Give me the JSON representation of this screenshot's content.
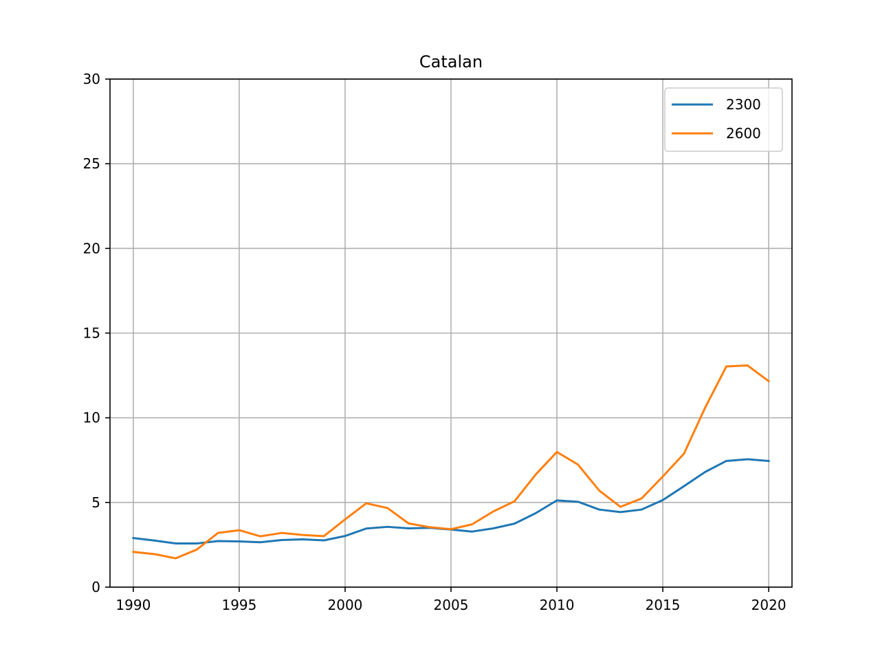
{
  "chart_data": {
    "type": "line",
    "title": "Catalan",
    "xlabel": "",
    "ylabel": "",
    "xlim": [
      1988.9,
      2021.1
    ],
    "ylim": [
      0,
      30
    ],
    "xticks": [
      1990,
      1995,
      2000,
      2005,
      2010,
      2015,
      2020
    ],
    "yticks": [
      0,
      5,
      10,
      15,
      20,
      25,
      30
    ],
    "grid": true,
    "legend_position": "top-right",
    "x": [
      1990,
      1991,
      1992,
      1993,
      1994,
      1995,
      1996,
      1997,
      1998,
      1999,
      2000,
      2001,
      2002,
      2003,
      2004,
      2005,
      2006,
      2007,
      2008,
      2009,
      2010,
      2011,
      2012,
      2013,
      2014,
      2015,
      2016,
      2017,
      2018,
      2019,
      2020
    ],
    "series": [
      {
        "name": "2300",
        "color": "#1f77b4",
        "values": [
          2.9,
          2.75,
          2.58,
          2.58,
          2.72,
          2.7,
          2.65,
          2.78,
          2.82,
          2.76,
          3.02,
          3.46,
          3.56,
          3.47,
          3.5,
          3.4,
          3.28,
          3.47,
          3.75,
          4.37,
          5.12,
          5.04,
          4.58,
          4.43,
          4.58,
          5.14,
          5.96,
          6.8,
          7.45,
          7.55,
          7.45
        ]
      },
      {
        "name": "2600",
        "color": "#ff7f0e",
        "values": [
          2.08,
          1.95,
          1.7,
          2.22,
          3.2,
          3.36,
          3.0,
          3.2,
          3.08,
          3.01,
          4.0,
          4.95,
          4.67,
          3.76,
          3.54,
          3.42,
          3.71,
          4.47,
          5.07,
          6.65,
          7.98,
          7.23,
          5.7,
          4.74,
          5.24,
          6.53,
          7.88,
          10.6,
          13.03,
          13.09,
          12.16
        ]
      }
    ]
  }
}
